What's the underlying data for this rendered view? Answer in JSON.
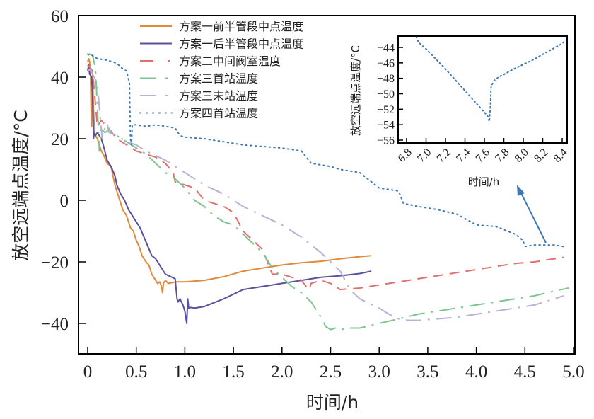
{
  "chart_data": [
    {
      "type": "line",
      "title": "",
      "xlabel": "时间/h",
      "ylabel": "放空远端点温度/°C",
      "xlim": [
        -0.05,
        5.0
      ],
      "ylim": [
        -50,
        60
      ],
      "xticks": [
        0,
        0.5,
        1.0,
        1.5,
        2.0,
        2.5,
        3.0,
        3.5,
        4.0,
        4.5,
        5.0
      ],
      "xtick_labels": [
        "0",
        "0.5",
        "1.0",
        "1.5",
        "2.0",
        "2.5",
        "3.0",
        "3.5",
        "4.0",
        "4.5",
        "5.0"
      ],
      "yticks": [
        -40,
        -20,
        0,
        20,
        40,
        60
      ],
      "ytick_labels": [
        "−40",
        "−20",
        "0",
        "20",
        "40",
        "60"
      ],
      "grid": false,
      "legend_position": "top-center",
      "series": [
        {
          "name": "方案一前半管段中点温度",
          "color": "#E08A3C",
          "style": "solid",
          "x": [
            0,
            0.01,
            0.02,
            0.03,
            0.035,
            0.04,
            0.05,
            0.06,
            0.07,
            0.08,
            0.1,
            0.12,
            0.14,
            0.16,
            0.2,
            0.24,
            0.28,
            0.3,
            0.33,
            0.36,
            0.4,
            0.44,
            0.47,
            0.5,
            0.53,
            0.56,
            0.6,
            0.63,
            0.66,
            0.68,
            0.72,
            0.74,
            0.76,
            0.77,
            0.78,
            0.8,
            0.83,
            0.86,
            0.9,
            1.0,
            1.2,
            1.4,
            1.6,
            1.8,
            2.0,
            2.2,
            2.4,
            2.6,
            2.8,
            2.92
          ],
          "y": [
            45,
            46,
            45,
            40,
            30,
            24,
            42,
            30,
            22,
            21,
            20,
            18,
            16,
            15,
            12,
            11,
            5,
            3,
            0,
            -3,
            -5,
            -9,
            -10,
            -13,
            -15,
            -18,
            -20,
            -21,
            -24,
            -25,
            -27,
            -26.5,
            -28,
            -30,
            -27,
            -26,
            -27,
            -26.8,
            -26.5,
            -26.5,
            -26,
            -24.8,
            -23,
            -22,
            -21,
            -20.3,
            -19.8,
            -19,
            -18.3,
            -18
          ]
        },
        {
          "name": "方案一后半管段中点温度",
          "color": "#5A519A",
          "style": "solid",
          "x": [
            0,
            0.01,
            0.02,
            0.04,
            0.05,
            0.06,
            0.07,
            0.08,
            0.1,
            0.14,
            0.16,
            0.2,
            0.24,
            0.28,
            0.3,
            0.34,
            0.38,
            0.42,
            0.46,
            0.5,
            0.54,
            0.58,
            0.62,
            0.66,
            0.7,
            0.74,
            0.8,
            0.9,
            0.92,
            0.93,
            0.95,
            0.98,
            1.0,
            1.02,
            1.03,
            1.04,
            1.06,
            1.1,
            1.2,
            1.4,
            1.6,
            1.8,
            2.0,
            2.2,
            2.4,
            2.6,
            2.8,
            2.92
          ],
          "y": [
            42,
            44,
            41,
            40,
            35,
            20,
            22,
            21,
            22,
            20,
            18,
            13,
            11,
            8,
            5,
            2,
            0,
            -3,
            -5,
            -7,
            -9,
            -12,
            -15,
            -18,
            -19,
            -21,
            -24,
            -25.5,
            -32,
            -33,
            -32,
            -34,
            -36,
            -40,
            -32,
            -35,
            -34.8,
            -35,
            -34.5,
            -32,
            -29,
            -28,
            -27,
            -26,
            -25,
            -24.5,
            -23.8,
            -23
          ]
        },
        {
          "name": "方案二中间阀室温度",
          "color": "#E07070",
          "style": "dashed",
          "x": [
            0,
            0.05,
            0.1,
            0.14,
            0.2,
            0.3,
            0.4,
            0.45,
            0.5,
            0.6,
            0.7,
            0.8,
            0.88,
            0.9,
            1.0,
            1.1,
            1.2,
            1.3,
            1.4,
            1.5,
            1.6,
            1.7,
            1.8,
            1.85,
            1.9,
            2.0,
            2.1,
            2.2,
            2.25,
            2.28,
            2.3,
            2.4,
            2.5,
            2.6,
            2.8,
            3.0,
            3.2,
            3.4,
            3.6,
            3.8,
            4.0,
            4.2,
            4.4,
            4.6,
            4.8,
            4.9
          ],
          "y": [
            44,
            42,
            24,
            26,
            24,
            20,
            18,
            17,
            16,
            15,
            14,
            12,
            9,
            6,
            5,
            4,
            0,
            -1,
            -2,
            -4,
            -10,
            -13,
            -16,
            -20,
            -24,
            -24,
            -25,
            -26,
            -28,
            -29,
            -27,
            -26,
            -27,
            -29,
            -28.5,
            -27.5,
            -26.5,
            -25.5,
            -24.5,
            -23.5,
            -22.5,
            -21.5,
            -20.5,
            -20,
            -19,
            -18.5
          ]
        },
        {
          "name": "方案三首站温度",
          "color": "#7DC48F",
          "style": "dashdot",
          "x": [
            0,
            0.02,
            0.05,
            0.08,
            0.1,
            0.12,
            0.14,
            0.18,
            0.22,
            0.26,
            0.3,
            0.35,
            0.4,
            0.45,
            0.5,
            0.6,
            0.7,
            0.8,
            0.9,
            1.0,
            1.1,
            1.2,
            1.3,
            1.4,
            1.5,
            1.6,
            1.7,
            1.8,
            1.9,
            2.0,
            2.1,
            2.2,
            2.3,
            2.4,
            2.45,
            2.5,
            2.55,
            2.6,
            2.7,
            2.8,
            3.0,
            3.2,
            3.4,
            3.6,
            3.8,
            4.0,
            4.2,
            4.4,
            4.6,
            4.8,
            4.95
          ],
          "y": [
            47,
            47.5,
            47,
            43,
            30,
            16,
            23,
            22,
            23,
            22,
            21,
            20,
            19,
            18,
            17,
            15,
            12,
            9,
            7,
            4,
            0,
            -2,
            -5,
            -7,
            -8,
            -11,
            -14,
            -17,
            -22,
            -25,
            -28,
            -30,
            -33,
            -38,
            -41,
            -42,
            -41.5,
            -42,
            -41.5,
            -41.5,
            -40,
            -38.5,
            -37,
            -36,
            -35,
            -34,
            -33,
            -32,
            -31,
            -29.5,
            -28.5
          ]
        },
        {
          "name": "方案三末站温度",
          "color": "#B8B0D8",
          "style": "dashdot",
          "x": [
            0,
            0.02,
            0.05,
            0.1,
            0.12,
            0.15,
            0.18,
            0.2,
            0.22,
            0.3,
            0.4,
            0.5,
            0.6,
            0.8,
            1.0,
            1.2,
            1.4,
            1.6,
            1.8,
            2.0,
            2.2,
            2.4,
            2.5,
            2.6,
            2.7,
            2.8,
            3.0,
            3.1,
            3.2,
            3.3,
            3.4,
            3.6,
            3.8,
            4.0,
            4.2,
            4.4,
            4.6,
            4.8,
            4.9
          ],
          "y": [
            42,
            42.5,
            41,
            38,
            30,
            20,
            24,
            25,
            22,
            21,
            19,
            18,
            16,
            13,
            9,
            5,
            2,
            -2,
            -5,
            -8,
            -12,
            -17,
            -20,
            -23,
            -29,
            -32,
            -35,
            -37,
            -38.5,
            -39,
            -39,
            -38.5,
            -38,
            -37,
            -36,
            -35,
            -34,
            -32,
            -31
          ]
        },
        {
          "name": "方案四首站温度",
          "color": "#3D78B5",
          "style": "dotted",
          "x": [
            0,
            0.05,
            0.1,
            0.2,
            0.3,
            0.35,
            0.4,
            0.43,
            0.44,
            0.45,
            0.46,
            0.5,
            0.6,
            0.7,
            0.8,
            0.9,
            0.95,
            1.0,
            1.2,
            1.4,
            1.6,
            1.8,
            2.0,
            2.1,
            2.2,
            2.3,
            2.4,
            2.5,
            2.6,
            2.8,
            3.0,
            3.2,
            3.25,
            3.4,
            3.6,
            3.8,
            4.0,
            4.2,
            4.4,
            4.48,
            4.5,
            4.6,
            4.8,
            4.9
          ],
          "y": [
            47.5,
            47,
            46,
            45.5,
            44.5,
            43,
            42,
            38,
            20,
            18,
            24.5,
            24.5,
            24,
            24.5,
            24,
            23.5,
            21,
            20.5,
            20,
            19,
            18,
            17.5,
            17,
            16.5,
            16,
            12,
            11.5,
            11,
            10,
            9,
            4,
            3,
            -1,
            -2,
            -3,
            -4.5,
            -8,
            -8.5,
            -11,
            -13,
            -15,
            -14.5,
            -14.5,
            -15
          ]
        }
      ],
      "annotations": [
        {
          "type": "arrow",
          "from": [
            4.7,
            -14
          ],
          "to": [
            4.4,
            -5
          ],
          "color": "#3D78B5"
        }
      ]
    },
    {
      "type": "line",
      "title": "inset",
      "xlabel": "时间/h",
      "ylabel": "放空远端点温度/°C",
      "xlim": [
        6.7,
        8.45
      ],
      "ylim": [
        -57,
        -42.5
      ],
      "xticks": [
        6.8,
        7.0,
        7.2,
        7.4,
        7.6,
        7.8,
        8.0,
        8.2,
        8.4
      ],
      "xtick_labels": [
        "6.8",
        "7.0",
        "7.2",
        "7.4",
        "7.6",
        "7.8",
        "8.0",
        "8.2",
        "8.4"
      ],
      "yticks": [
        -44,
        -46,
        -48,
        -50,
        -52,
        -54,
        -56
      ],
      "ytick_labels": [
        "−44",
        "−46",
        "−48",
        "−50",
        "−52",
        "−54",
        "−56"
      ],
      "grid": false,
      "legend_position": "none",
      "series": [
        {
          "name": "方案四首站温度",
          "color": "#3D78B5",
          "style": "dotted",
          "x": [
            6.9,
            6.92,
            7.0,
            7.1,
            7.2,
            7.3,
            7.4,
            7.5,
            7.6,
            7.64,
            7.65,
            7.66,
            7.67,
            7.7,
            7.75,
            7.8,
            7.9,
            8.0,
            8.1,
            8.2,
            8.3,
            8.4,
            8.45
          ],
          "y": [
            -42.6,
            -43.3,
            -44.2,
            -45.5,
            -46.8,
            -48.2,
            -49.6,
            -51,
            -52.4,
            -53,
            -53.6,
            -52,
            -49,
            -48.3,
            -47.8,
            -47.5,
            -46.8,
            -46.2,
            -45.6,
            -44.9,
            -44.2,
            -43.5,
            -42.9
          ]
        }
      ]
    }
  ]
}
